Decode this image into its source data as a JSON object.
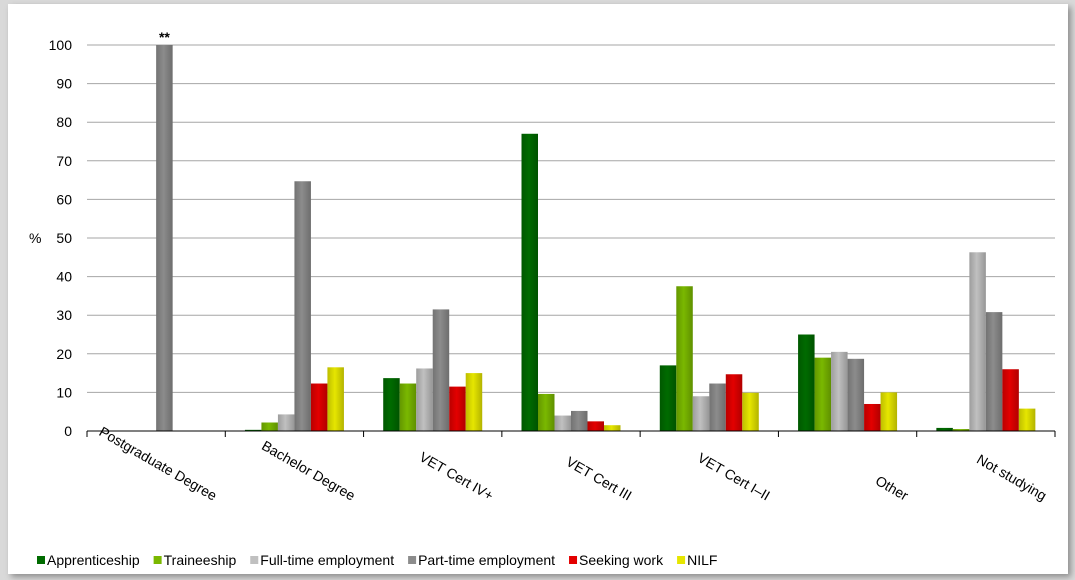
{
  "chart_data": {
    "type": "bar",
    "ylabel": "%",
    "ylim": [
      0,
      100
    ],
    "yticks": [
      0,
      10,
      20,
      30,
      40,
      50,
      60,
      70,
      80,
      90,
      100
    ],
    "grid": true,
    "legend_position": "bottom-left",
    "categories": [
      "Postgraduate Degree",
      "Bachelor Degree",
      "VET Cert IV+",
      "VET Cert III",
      "VET Cert I–II",
      "Other",
      "Not studying"
    ],
    "series": [
      {
        "name": "Apprenticeship",
        "color": "#006b00",
        "values": [
          0,
          0.3,
          13.7,
          77,
          17,
          25,
          0.8
        ]
      },
      {
        "name": "Traineeship",
        "color": "#7ab800",
        "values": [
          0,
          2.2,
          12.3,
          9.6,
          37.5,
          19,
          0.5
        ]
      },
      {
        "name": "Full-time employment",
        "color": "#c0c0c0",
        "values": [
          0,
          4.3,
          16.2,
          4,
          9,
          20.5,
          46.3
        ]
      },
      {
        "name": "Part-time employment",
        "color": "#8c8c8c",
        "values": [
          100,
          64.7,
          31.5,
          5.2,
          12.3,
          18.7,
          30.8
        ]
      },
      {
        "name": "Seeking work",
        "color": "#e30000",
        "values": [
          0,
          12.3,
          11.5,
          2.5,
          14.7,
          7,
          16
        ]
      },
      {
        "name": "NILF",
        "color": "#e6e600",
        "values": [
          0,
          16.5,
          15,
          1.5,
          9.9,
          10,
          5.8
        ]
      }
    ],
    "annotations": [
      {
        "text": "**",
        "category": "Postgraduate Degree",
        "series": "Part-time employment"
      }
    ]
  }
}
